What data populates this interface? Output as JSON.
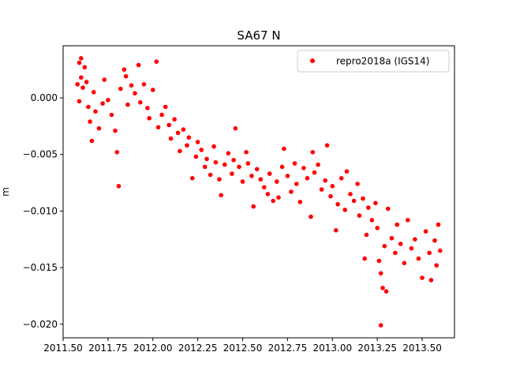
{
  "chart_data": {
    "type": "scatter",
    "title": "SA67 N",
    "xlabel": "",
    "ylabel": "m",
    "xlim": [
      2011.5,
      2013.68
    ],
    "ylim": [
      -0.0212,
      0.0046
    ],
    "x_ticks": [
      {
        "value": 2011.5,
        "label": "2011.50"
      },
      {
        "value": 2011.75,
        "label": "2011.75"
      },
      {
        "value": 2012.0,
        "label": "2012.00"
      },
      {
        "value": 2012.25,
        "label": "2012.25"
      },
      {
        "value": 2012.5,
        "label": "2012.50"
      },
      {
        "value": 2012.75,
        "label": "2012.75"
      },
      {
        "value": 2013.0,
        "label": "2013.00"
      },
      {
        "value": 2013.25,
        "label": "2013.25"
      },
      {
        "value": 2013.5,
        "label": "2013.50"
      }
    ],
    "y_ticks": [
      {
        "value": 0.0,
        "label": "0.000"
      },
      {
        "value": -0.005,
        "label": "−0.005"
      },
      {
        "value": -0.01,
        "label": "−0.010"
      },
      {
        "value": -0.015,
        "label": "−0.015"
      },
      {
        "value": -0.02,
        "label": "−0.020"
      }
    ],
    "grid": false,
    "legend_position": "top-right",
    "series": [
      {
        "name": "repro2018a (IGS14)",
        "color": "#ff0000",
        "marker": "circle",
        "points": [
          [
            2011.58,
            0.0012
          ],
          [
            2011.59,
            0.0031
          ],
          [
            2011.6,
            0.0035
          ],
          [
            2011.59,
            -0.0003
          ],
          [
            2011.6,
            0.0018
          ],
          [
            2011.61,
            0.0009
          ],
          [
            2011.62,
            0.0027
          ],
          [
            2011.63,
            0.0014
          ],
          [
            2011.64,
            -0.0008
          ],
          [
            2011.65,
            -0.0021
          ],
          [
            2011.66,
            -0.0038
          ],
          [
            2011.67,
            0.0005
          ],
          [
            2011.68,
            -0.0012
          ],
          [
            2011.7,
            -0.0027
          ],
          [
            2011.72,
            -0.0005
          ],
          [
            2011.73,
            0.0016
          ],
          [
            2011.75,
            -0.0002
          ],
          [
            2011.77,
            -0.0015
          ],
          [
            2011.79,
            -0.0029
          ],
          [
            2011.8,
            -0.0048
          ],
          [
            2011.81,
            -0.0078
          ],
          [
            2011.82,
            0.0008
          ],
          [
            2011.84,
            0.0025
          ],
          [
            2011.85,
            0.0019
          ],
          [
            2011.86,
            -0.0006
          ],
          [
            2011.88,
            0.0011
          ],
          [
            2011.9,
            0.0004
          ],
          [
            2011.92,
            0.0029
          ],
          [
            2011.93,
            -0.0004
          ],
          [
            2011.95,
            0.0012
          ],
          [
            2011.97,
            -0.0009
          ],
          [
            2011.98,
            -0.0018
          ],
          [
            2012.0,
            0.0007
          ],
          [
            2012.02,
            0.0032
          ],
          [
            2012.03,
            -0.0026
          ],
          [
            2012.05,
            -0.0015
          ],
          [
            2012.07,
            -0.0008
          ],
          [
            2012.09,
            -0.0024
          ],
          [
            2012.1,
            -0.0036
          ],
          [
            2012.12,
            -0.0019
          ],
          [
            2012.14,
            -0.0031
          ],
          [
            2012.15,
            -0.0047
          ],
          [
            2012.17,
            -0.0028
          ],
          [
            2012.19,
            -0.0042
          ],
          [
            2012.2,
            -0.0035
          ],
          [
            2012.22,
            -0.0071
          ],
          [
            2012.24,
            -0.0052
          ],
          [
            2012.25,
            -0.0039
          ],
          [
            2012.27,
            -0.0046
          ],
          [
            2012.29,
            -0.0061
          ],
          [
            2012.3,
            -0.0054
          ],
          [
            2012.32,
            -0.0068
          ],
          [
            2012.34,
            -0.0043
          ],
          [
            2012.35,
            -0.0057
          ],
          [
            2012.37,
            -0.0072
          ],
          [
            2012.38,
            -0.0086
          ],
          [
            2012.4,
            -0.0059
          ],
          [
            2012.42,
            -0.0049
          ],
          [
            2012.44,
            -0.0067
          ],
          [
            2012.45,
            -0.0055
          ],
          [
            2012.46,
            -0.0027
          ],
          [
            2012.48,
            -0.0061
          ],
          [
            2012.5,
            -0.0074
          ],
          [
            2012.52,
            -0.0048
          ],
          [
            2012.53,
            -0.0058
          ],
          [
            2012.55,
            -0.0069
          ],
          [
            2012.56,
            -0.0096
          ],
          [
            2012.58,
            -0.0063
          ],
          [
            2012.6,
            -0.0072
          ],
          [
            2012.62,
            -0.0079
          ],
          [
            2012.64,
            -0.0085
          ],
          [
            2012.65,
            -0.0067
          ],
          [
            2012.67,
            -0.0091
          ],
          [
            2012.69,
            -0.0074
          ],
          [
            2012.7,
            -0.0088
          ],
          [
            2012.72,
            -0.0061
          ],
          [
            2012.73,
            -0.0045
          ],
          [
            2012.75,
            -0.0069
          ],
          [
            2012.77,
            -0.0083
          ],
          [
            2012.79,
            -0.0058
          ],
          [
            2012.8,
            -0.0076
          ],
          [
            2012.82,
            -0.0092
          ],
          [
            2012.84,
            -0.0062
          ],
          [
            2012.86,
            -0.0071
          ],
          [
            2012.88,
            -0.0105
          ],
          [
            2012.89,
            -0.0048
          ],
          [
            2012.9,
            -0.0066
          ],
          [
            2012.92,
            -0.0059
          ],
          [
            2012.94,
            -0.0081
          ],
          [
            2012.96,
            -0.0073
          ],
          [
            2012.97,
            -0.0042
          ],
          [
            2012.99,
            -0.0087
          ],
          [
            2013.0,
            -0.0078
          ],
          [
            2013.02,
            -0.0117
          ],
          [
            2013.03,
            -0.0094
          ],
          [
            2013.05,
            -0.0071
          ],
          [
            2013.07,
            -0.0099
          ],
          [
            2013.08,
            -0.0065
          ],
          [
            2013.1,
            -0.0085
          ],
          [
            2013.12,
            -0.0091
          ],
          [
            2013.14,
            -0.0076
          ],
          [
            2013.15,
            -0.0104
          ],
          [
            2013.17,
            -0.0089
          ],
          [
            2013.18,
            -0.0142
          ],
          [
            2013.19,
            -0.0121
          ],
          [
            2013.2,
            -0.0097
          ],
          [
            2013.22,
            -0.0108
          ],
          [
            2013.24,
            -0.0093
          ],
          [
            2013.25,
            -0.0115
          ],
          [
            2013.26,
            -0.0144
          ],
          [
            2013.27,
            -0.0155
          ],
          [
            2013.28,
            -0.0168
          ],
          [
            2013.29,
            -0.0131
          ],
          [
            2013.3,
            -0.0171
          ],
          [
            2013.31,
            -0.0098
          ],
          [
            2013.33,
            -0.0124
          ],
          [
            2013.35,
            -0.0137
          ],
          [
            2013.36,
            -0.0112
          ],
          [
            2013.38,
            -0.0129
          ],
          [
            2013.4,
            -0.0146
          ],
          [
            2013.42,
            -0.0108
          ],
          [
            2013.44,
            -0.0133
          ],
          [
            2013.46,
            -0.0125
          ],
          [
            2013.48,
            -0.0142
          ],
          [
            2013.5,
            -0.0159
          ],
          [
            2013.52,
            -0.0118
          ],
          [
            2013.54,
            -0.0137
          ],
          [
            2013.55,
            -0.0161
          ],
          [
            2013.57,
            -0.0126
          ],
          [
            2013.58,
            -0.0148
          ],
          [
            2013.59,
            -0.0112
          ],
          [
            2013.6,
            -0.0135
          ],
          [
            2013.27,
            -0.0201
          ]
        ]
      }
    ]
  }
}
